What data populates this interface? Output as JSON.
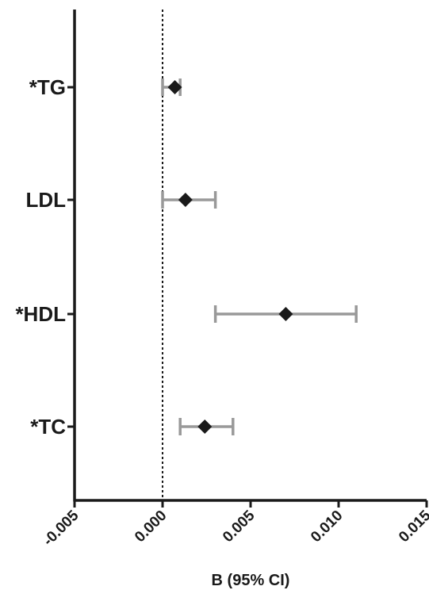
{
  "chart_data": {
    "type": "forest",
    "title": "",
    "xlabel": "B (95% CI)",
    "ylabel": "",
    "xlim": [
      -0.005,
      0.015
    ],
    "xticks": [
      -0.005,
      0.0,
      0.005,
      0.01,
      0.015
    ],
    "xtick_labels": [
      "-0.005",
      "0.000",
      "0.005",
      "0.010",
      "0.015"
    ],
    "reference_line": 0.0,
    "grid": false,
    "rows": [
      {
        "label": "*TG",
        "estimate": 0.0007,
        "ci_low": 0.0,
        "ci_high": 0.001
      },
      {
        "label": "LDL",
        "estimate": 0.0013,
        "ci_low": 0.0,
        "ci_high": 0.003
      },
      {
        "label": "*HDL",
        "estimate": 0.007,
        "ci_low": 0.003,
        "ci_high": 0.011
      },
      {
        "label": "*TC",
        "estimate": 0.0024,
        "ci_low": 0.001,
        "ci_high": 0.004
      }
    ],
    "colors": {
      "marker": "#1a1a1a",
      "ci": "#999999",
      "axis": "#1a1a1a"
    }
  }
}
